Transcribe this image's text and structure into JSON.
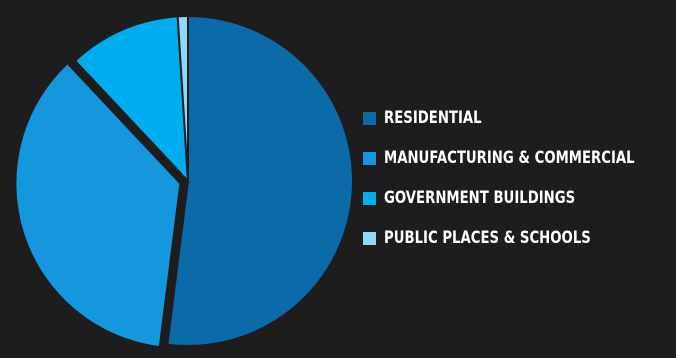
{
  "chart_data": {
    "type": "pie",
    "legend_position": "right",
    "categories": [
      "Residential",
      "Manufacturing & Commercial",
      "Government Buildings",
      "Public Places & Schools"
    ],
    "values": [
      52,
      36,
      11,
      1
    ],
    "colors": [
      "#0b6aa8",
      "#1497dc",
      "#00aeef",
      "#8fd8f6"
    ],
    "exploded": [
      false,
      true,
      false,
      false
    ],
    "title": "",
    "xlabel": "",
    "ylabel": ""
  }
}
